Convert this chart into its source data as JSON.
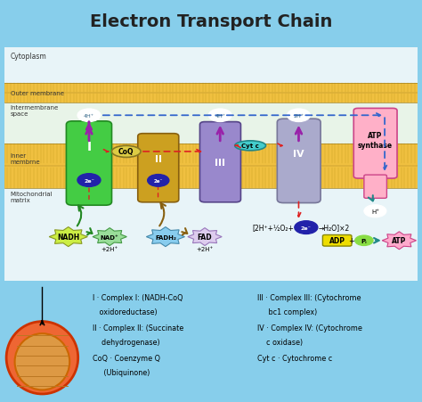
{
  "title": "Electron Transport Chain",
  "title_fontsize": 14,
  "title_bg": "#87CEEB",
  "white_bg": "#ffffff",
  "cytoplasm_bg": "#e8f4f8",
  "intermembrane_bg": "#e8f4e8",
  "matrix_bg": "#e8f4f8",
  "membrane_color": "#F0C040",
  "membrane_stripe": "#C8A020",
  "cytoplasm_label": "Cytoplasm",
  "outer_membrane_label": "Outer membrane",
  "intermembrane_label": "Intermembrane\nspace",
  "inner_membrane_label": "Inner\nmembrne",
  "matrix_label": "Mitochondrial\nmatrix",
  "complex1_color": "#44CC44",
  "complex1_edge": "#228822",
  "complex2_color": "#CCA020",
  "complex2_edge": "#886010",
  "complex3_color": "#9988CC",
  "complex3_edge": "#554488",
  "complex4_color": "#AAAACC",
  "complex4_edge": "#777799",
  "atp_color": "#FFB0C8",
  "atp_edge": "#CC4488",
  "coq_color": "#DDCC44",
  "coq_edge": "#887722",
  "cytc_color": "#44CCCC",
  "cytc_edge": "#228888",
  "nadh_color": "#CCEE44",
  "nadh_edge": "#889922",
  "nad_color": "#99DD99",
  "nad_edge": "#449944",
  "fadh_color": "#88CCEE",
  "fadh_edge": "#4488AA",
  "fad_color": "#DDCCEE",
  "fad_edge": "#9977BB",
  "adp_color": "#EEDD00",
  "pi_color": "#88DD44",
  "atp_prod_color": "#FFAACC",
  "electron_color": "#2222AA",
  "purple_arrow": "#9922AA",
  "red_arrow": "#DD2222",
  "blue_arrow": "#3366CC",
  "green_arrow": "#228822",
  "teal_arrow": "#228888"
}
